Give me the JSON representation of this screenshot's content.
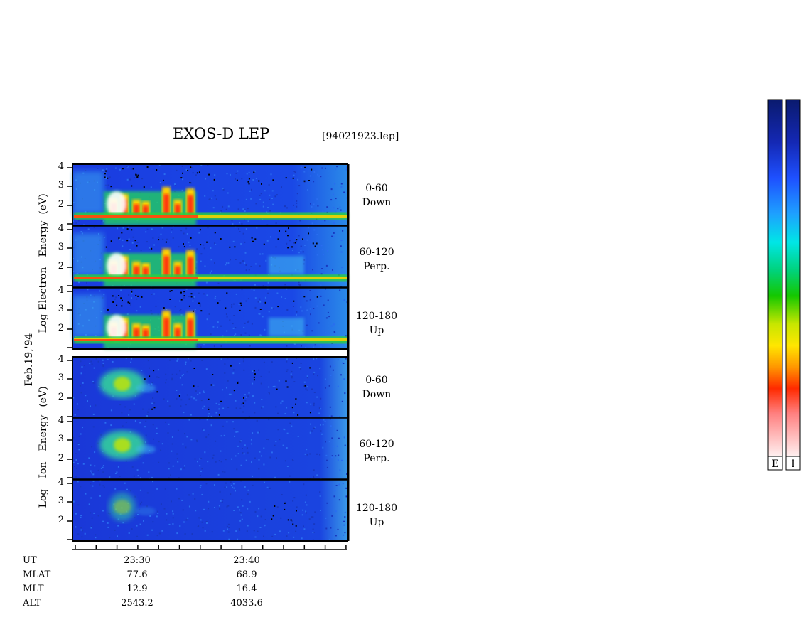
{
  "header": {
    "title": "EXOS-D LEP",
    "file": "[94021923.lep]"
  },
  "date_label": "Feb.19,'94",
  "electron_axis": {
    "line1": "Log",
    "line2": "Electron",
    "line3": "Energy",
    "line4": "(eV)"
  },
  "ion_axis": {
    "line1": "Log",
    "line2": "Ion",
    "line3": "Energy",
    "line4": "(eV)"
  },
  "panels": [
    {
      "pitch": "0-60",
      "direction": "Down"
    },
    {
      "pitch": "60-120",
      "direction": "Perp."
    },
    {
      "pitch": "120-180",
      "direction": "Up"
    },
    {
      "pitch": "0-60",
      "direction": "Down"
    },
    {
      "pitch": "60-120",
      "direction": "Perp."
    },
    {
      "pitch": "120-180",
      "direction": "Up"
    }
  ],
  "y_ticks": [
    "4",
    "3",
    "2"
  ],
  "time_axis": {
    "rows": [
      "UT",
      "MLAT",
      "MLT",
      "ALT"
    ],
    "col1": {
      "UT": "23:30",
      "MLAT": "77.6",
      "MLT": "12.9",
      "ALT": "2543.2"
    },
    "col2": {
      "UT": "23:40",
      "MLAT": "68.9",
      "MLT": "16.4",
      "ALT": "4033.6"
    }
  },
  "colorbar": {
    "left_label": "E",
    "right_label": "I",
    "colors": [
      "#0a1a6e",
      "#1530c8",
      "#1e5aff",
      "#1ea0ff",
      "#00e0e6",
      "#00d060",
      "#10c800",
      "#c8e600",
      "#ffe600",
      "#ff9600",
      "#ff3000",
      "#ff8080",
      "#ffe6e6"
    ]
  },
  "chart_data": {
    "type": "heatmap",
    "title": "EXOS-D LEP",
    "xlabel": "UT",
    "ylabel": "Log Energy (eV)",
    "x": [
      "23:30",
      "23:40"
    ],
    "ylim": [
      1,
      4
    ],
    "y_ticks": [
      2,
      3,
      4
    ],
    "series": [
      {
        "name": "Electron 0-60 Down"
      },
      {
        "name": "Electron 60-120 Perp."
      },
      {
        "name": "Electron 120-180 Up"
      },
      {
        "name": "Ion 0-60 Down"
      },
      {
        "name": "Ion 60-120 Perp."
      },
      {
        "name": "Ion 120-180 Up"
      }
    ]
  }
}
